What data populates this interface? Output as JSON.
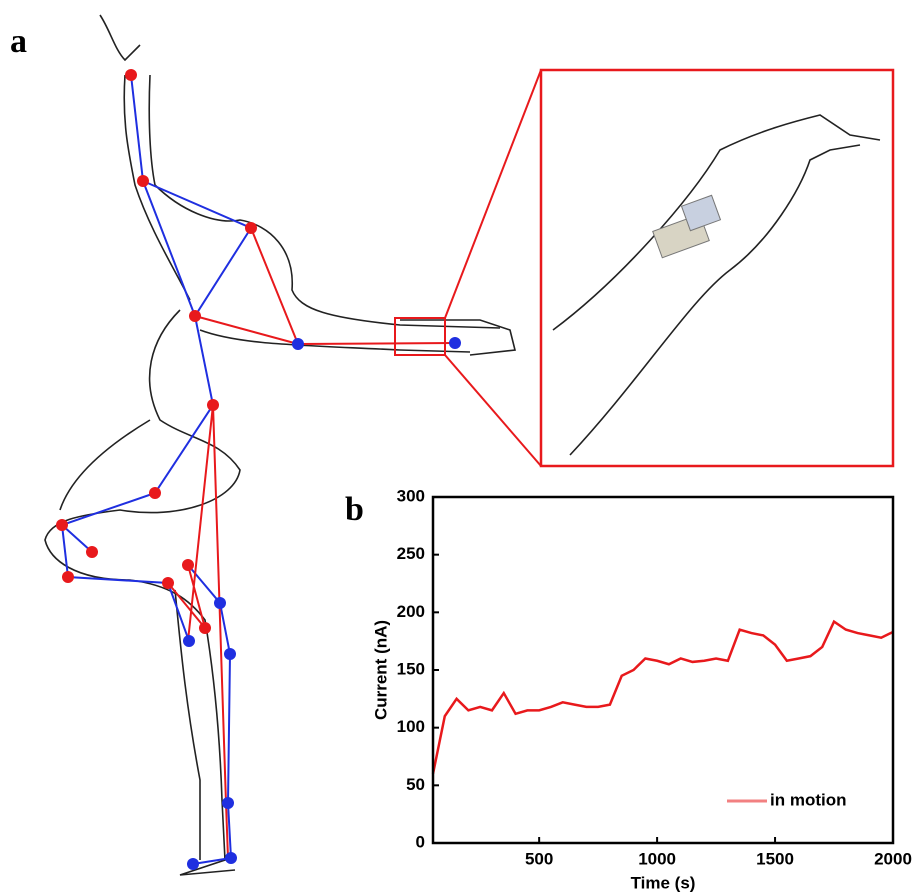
{
  "panel_labels": [
    "a",
    "b"
  ],
  "chart_data": {
    "type": "line",
    "xlabel": "Time (s)",
    "ylabel": "Current (nA)",
    "x": [
      50,
      100,
      150,
      200,
      250,
      300,
      350,
      400,
      450,
      500,
      550,
      600,
      650,
      700,
      750,
      800,
      850,
      900,
      950,
      1000,
      1050,
      1100,
      1150,
      1200,
      1250,
      1300,
      1350,
      1400,
      1450,
      1500,
      1550,
      1600,
      1650,
      1700,
      1750,
      1800,
      1850,
      1900,
      1950,
      2000
    ],
    "series": [
      {
        "name": "in motion",
        "color": "#e8191c",
        "values": [
          60,
          110,
          125,
          115,
          118,
          115,
          130,
          112,
          115,
          115,
          118,
          122,
          120,
          118,
          118,
          120,
          145,
          150,
          160,
          158,
          155,
          160,
          157,
          158,
          160,
          158,
          185,
          182,
          180,
          172,
          158,
          160,
          162,
          170,
          192,
          185,
          182,
          180,
          178,
          183
        ]
      }
    ],
    "xlim": [
      50,
      2000
    ],
    "xticks": [
      500,
      1000,
      1500,
      2000
    ],
    "ylim": [
      0,
      300
    ],
    "yticks": [
      0,
      50,
      100,
      150,
      200,
      250,
      300
    ],
    "legend": "lower right"
  }
}
